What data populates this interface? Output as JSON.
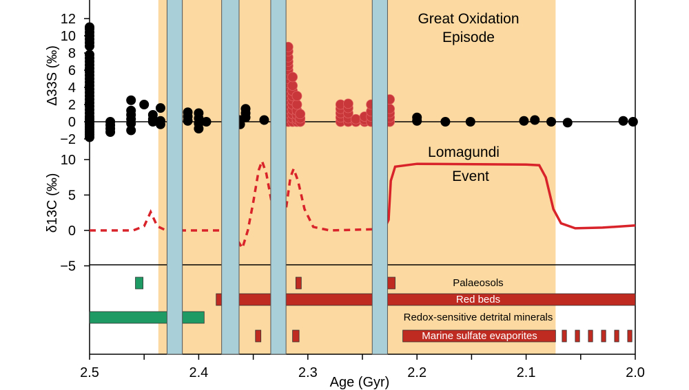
{
  "chart_data": {
    "type": "scatter",
    "xlabel": "Age (Gyr)",
    "xlim": [
      2.5,
      2.0
    ],
    "xticks": [
      "2.5",
      "2.4",
      "2.3",
      "2.2",
      "2.1",
      "2.0"
    ],
    "colors": {
      "band": "#fcd9a0",
      "glaciation": "#a9d0d8",
      "red": "#bf2a21",
      "red_points": "#c9373a",
      "green": "#1e9a64",
      "black": "#000000"
    },
    "shaded_interval": {
      "label_lines": [
        "Great Oxidation",
        "Episode"
      ],
      "from": 2.437,
      "to": 2.073
    },
    "glaciation_bars": [
      [
        2.429,
        2.415
      ],
      [
        2.379,
        2.363
      ],
      [
        2.334,
        2.32
      ],
      [
        2.241,
        2.227
      ]
    ],
    "sulfur": {
      "ylabel": "Δ33S (‰)",
      "ylim": [
        -2,
        13
      ],
      "yticks": [
        "−2",
        "0",
        "2",
        "4",
        "6",
        "8",
        "10",
        "12"
      ],
      "black_points": [
        {
          "age": 2.5,
          "values": [
            -1.8,
            -1.5,
            -1.2,
            -0.9,
            -0.6,
            -0.3,
            0,
            0.3,
            0.6,
            1,
            1.4,
            1.8,
            2.2,
            2.6,
            3,
            3.4,
            3.8,
            4.2,
            4.6,
            5,
            5.4,
            5.8,
            6.2,
            6.6,
            7,
            7.4,
            7.8,
            8.8,
            9.2,
            9.6,
            10,
            10.4,
            10.8,
            11
          ]
        },
        {
          "age": 2.481,
          "values": [
            -1.2,
            -0.8,
            -0.4,
            0
          ]
        },
        {
          "age": 2.462,
          "values": [
            -1,
            -0.2,
            0.3,
            0.8,
            1.3,
            2.5
          ]
        },
        {
          "age": 2.45,
          "values": [
            2.0
          ]
        },
        {
          "age": 2.442,
          "values": [
            0,
            0.3,
            0.8
          ]
        },
        {
          "age": 2.435,
          "values": [
            -0.3,
            0.1,
            1.6
          ]
        },
        {
          "age": 2.41,
          "values": [
            0.1,
            0.6,
            1.1
          ]
        },
        {
          "age": 2.4,
          "values": [
            -0.8,
            -0.2,
            0.4,
            1.0
          ]
        },
        {
          "age": 2.393,
          "values": [
            0
          ]
        },
        {
          "age": 2.362,
          "values": [
            -0.3,
            0.2
          ]
        },
        {
          "age": 2.357,
          "values": [
            0.5,
            1.0,
            1.5
          ]
        },
        {
          "age": 2.34,
          "values": [
            0.2
          ]
        },
        {
          "age": 2.2,
          "values": [
            0.1,
            0.5
          ]
        },
        {
          "age": 2.174,
          "values": [
            0
          ]
        },
        {
          "age": 2.151,
          "values": [
            0
          ]
        },
        {
          "age": 2.102,
          "values": [
            0.1
          ]
        },
        {
          "age": 2.092,
          "values": [
            0.2
          ]
        },
        {
          "age": 2.077,
          "values": [
            0
          ]
        },
        {
          "age": 2.062,
          "values": [
            -0.1
          ]
        },
        {
          "age": 2.011,
          "values": [
            0.1
          ]
        },
        {
          "age": 2.002,
          "values": [
            0
          ]
        }
      ],
      "red_points": [
        {
          "age": 2.318,
          "values": [
            0,
            0.5,
            1,
            1.5,
            2,
            2.5,
            3,
            3.5,
            4,
            4.5,
            5,
            5.5,
            6,
            6.5,
            7,
            7.5,
            8.2,
            8.7
          ]
        },
        {
          "age": 2.314,
          "values": [
            0,
            0.4,
            0.9,
            1.4,
            2,
            2.5,
            3,
            3.6,
            4.2,
            5.2
          ]
        },
        {
          "age": 2.31,
          "values": [
            0,
            0.3,
            0.8,
            1.3,
            2.0,
            3.0
          ]
        },
        {
          "age": 2.307,
          "values": [
            0,
            0.4,
            0.9
          ]
        },
        {
          "age": 2.27,
          "values": [
            0,
            0.5,
            1,
            1.5,
            2
          ]
        },
        {
          "age": 2.263,
          "values": [
            0,
            0.4,
            1,
            1.6,
            2.1
          ]
        },
        {
          "age": 2.256,
          "values": [
            0,
            0.3
          ]
        },
        {
          "age": 2.248,
          "values": [
            0,
            0.2,
            0.6
          ]
        },
        {
          "age": 2.242,
          "values": [
            0,
            0.6,
            1.2,
            2.0
          ]
        },
        {
          "age": 2.225,
          "values": [
            0,
            0.5,
            1,
            1.5,
            2.6
          ]
        }
      ]
    },
    "carbon": {
      "ylabel": "δ13C (‰)",
      "ylim": [
        -5,
        10
      ],
      "yticks": [
        "−5",
        "0",
        "5",
        "10"
      ],
      "event_label_lines": [
        "Lomagundi",
        "Event"
      ],
      "dashed": [
        [
          2.5,
          0
        ],
        [
          2.46,
          0
        ],
        [
          2.45,
          0.6
        ],
        [
          2.444,
          2.6
        ],
        [
          2.438,
          0.6
        ],
        [
          2.43,
          0
        ],
        [
          2.38,
          0
        ],
        [
          2.37,
          0.3
        ],
        [
          2.364,
          -1.5
        ],
        [
          2.36,
          -2.5
        ],
        [
          2.355,
          0
        ],
        [
          2.35,
          4
        ],
        [
          2.345,
          8.5
        ],
        [
          2.342,
          9.8
        ],
        [
          2.338,
          8
        ],
        [
          2.332,
          3
        ],
        [
          2.325,
          0.5
        ],
        [
          2.32,
          3
        ],
        [
          2.316,
          7.5
        ],
        [
          2.313,
          8.7
        ],
        [
          2.309,
          7
        ],
        [
          2.303,
          3
        ],
        [
          2.295,
          0.5
        ],
        [
          2.28,
          0
        ],
        [
          2.23,
          0.2
        ]
      ],
      "solid": [
        [
          2.23,
          0.2
        ],
        [
          2.226,
          1.5
        ],
        [
          2.224,
          7
        ],
        [
          2.22,
          9
        ],
        [
          2.2,
          9.4
        ],
        [
          2.1,
          9.3
        ],
        [
          2.088,
          9.2
        ],
        [
          2.082,
          7.5
        ],
        [
          2.075,
          3
        ],
        [
          2.068,
          1
        ],
        [
          2.055,
          0.3
        ],
        [
          2.03,
          0.4
        ],
        [
          2.0,
          0.7
        ]
      ]
    },
    "indicators": [
      {
        "label": "Palaeosols",
        "label_color": "#000000",
        "bars": [
          {
            "from": 2.458,
            "to": 2.451,
            "color": "green"
          },
          {
            "from": 2.311,
            "to": 2.306,
            "color": "red"
          },
          {
            "from": 2.227,
            "to": 2.22,
            "color": "red"
          }
        ]
      },
      {
        "label": "Red beds",
        "label_color": "#ffffff",
        "bars": [
          {
            "from": 2.384,
            "to": 2.379,
            "color": "red"
          },
          {
            "from": 2.363,
            "to": 2.0,
            "color": "red"
          }
        ]
      },
      {
        "label": "Redox-sensitive detrital minerals",
        "label_color": "#000000",
        "bars": [
          {
            "from": 2.5,
            "to": 2.395,
            "color": "green"
          }
        ]
      },
      {
        "label": "Marine sulfate evaporites",
        "label_color": "#ffffff",
        "bars": [
          {
            "from": 2.348,
            "to": 2.343,
            "color": "red"
          },
          {
            "from": 2.314,
            "to": 2.308,
            "color": "red"
          },
          {
            "from": 2.213,
            "to": 2.073,
            "color": "red"
          },
          {
            "from": 2.067,
            "to": 2.063,
            "color": "red"
          },
          {
            "from": 2.055,
            "to": 2.051,
            "color": "red"
          },
          {
            "from": 2.043,
            "to": 2.039,
            "color": "red"
          },
          {
            "from": 2.031,
            "to": 2.027,
            "color": "red"
          },
          {
            "from": 2.019,
            "to": 2.015,
            "color": "red"
          },
          {
            "from": 2.007,
            "to": 2.003,
            "color": "red"
          }
        ]
      }
    ]
  }
}
